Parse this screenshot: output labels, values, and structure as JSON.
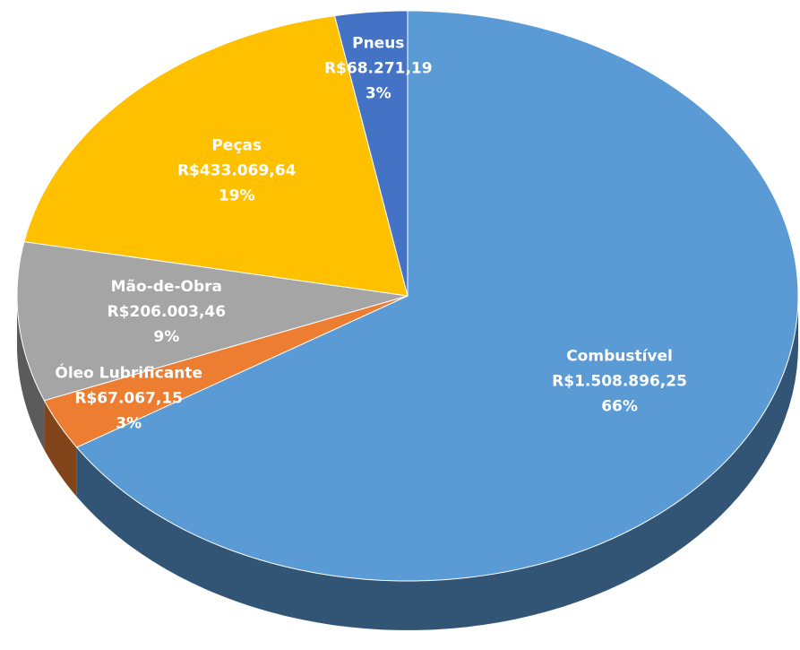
{
  "chart_data": {
    "type": "pie3d",
    "categories": [
      "Combustível",
      "Óleo Lubrificante",
      "Mão-de-Obra",
      "Peças",
      "Pneus"
    ],
    "values": [
      1508896.25,
      67067.15,
      206003.46,
      433069.64,
      68271.19
    ],
    "value_labels": [
      "R$1.508.896,25",
      "R$67.067,15",
      "R$206.003,46",
      "R$433.069,64",
      "R$68.271,19"
    ],
    "percent_labels": [
      "66%",
      "3%",
      "9%",
      "19%",
      "3%"
    ],
    "colors": [
      "#5b9bd5",
      "#ed7d31",
      "#a5a5a5",
      "#ffc000",
      "#4472c4"
    ]
  }
}
